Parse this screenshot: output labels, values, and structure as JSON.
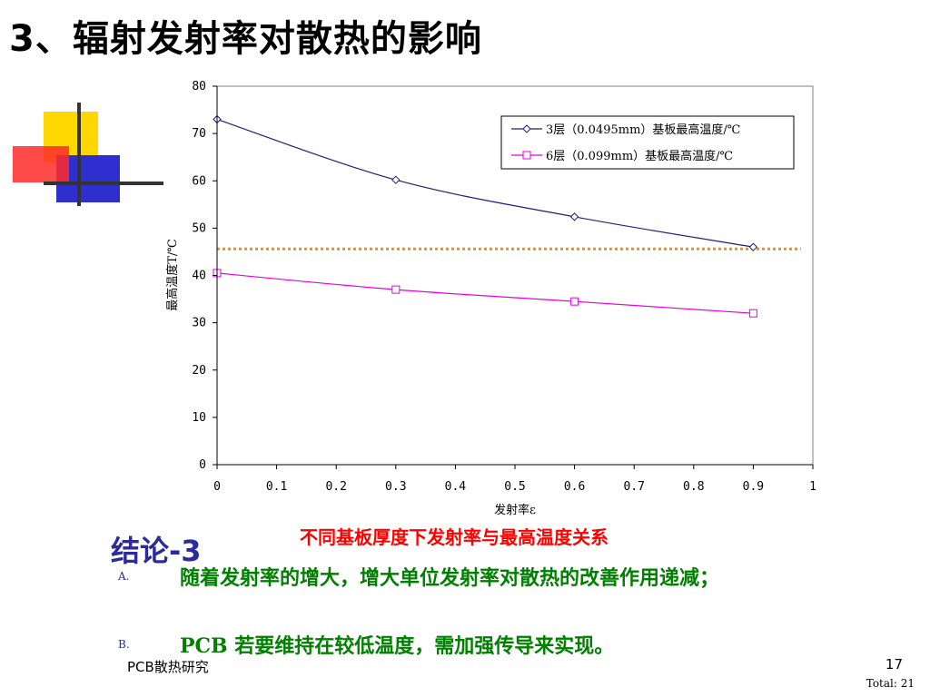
{
  "slide": {
    "title": "3、辐射发射率对散热的影响",
    "caption": "不同基板厚度下发射率与最高温度关系",
    "conclusion_label": "结论",
    "conclusion_number": "-3",
    "bullets": [
      {
        "marker": "A.",
        "text": "随着发射率的增大，增大单位发射率对散热的改善作用递减；"
      },
      {
        "marker": "B.",
        "text": "PCB 若要维持在较低温度，需加强传导来实现。"
      }
    ],
    "footer_text": "PCB散热研究",
    "page_number": "17",
    "page_total": "Total: 21"
  },
  "decoration_colors": {
    "yellow": "#ffd700",
    "red": "#ff2a2a",
    "blue": "#2f2fd0",
    "line": "#333333"
  },
  "chart_data": {
    "type": "line",
    "title": "",
    "xlabel": "发射率ε",
    "ylabel": "最高温度T/℃",
    "xlim": [
      0,
      1
    ],
    "ylim": [
      0,
      80
    ],
    "x_ticks": [
      0,
      0.1,
      0.2,
      0.3,
      0.4,
      0.5,
      0.6,
      0.7,
      0.8,
      0.9,
      1
    ],
    "x_tick_labels": [
      "0",
      "0.1",
      "0.2",
      "0.3",
      "0.4",
      "0.5",
      "0.6",
      "0.7",
      "0.8",
      "0.9",
      "1"
    ],
    "y_ticks": [
      0,
      10,
      20,
      30,
      40,
      50,
      60,
      70,
      80
    ],
    "y_tick_labels": [
      "0",
      "10",
      "20",
      "30",
      "40",
      "50",
      "60",
      "70",
      "80"
    ],
    "grid": false,
    "legend_position": "top-right",
    "series": [
      {
        "name": "3层（0.0495mm）基板最高温度/℃",
        "color": "#1f1f7a",
        "marker": "diamond",
        "x": [
          0,
          0.3,
          0.6,
          0.9
        ],
        "y": [
          73,
          60.2,
          52.4,
          46
        ]
      },
      {
        "name": "6层（0.099mm）基板最高温度/℃",
        "color": "#e600e6",
        "marker": "square",
        "x": [
          0,
          0.3,
          0.6,
          0.9
        ],
        "y": [
          40.5,
          37,
          34.5,
          32
        ]
      }
    ],
    "reference_line": {
      "y": 45.6,
      "x_start": 0,
      "x_end": 0.98,
      "color": "#ff8c00",
      "style": "dotted"
    }
  }
}
